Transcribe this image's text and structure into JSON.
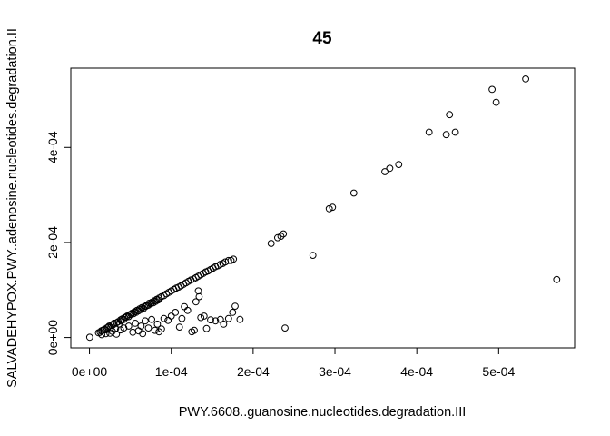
{
  "chart_data": {
    "type": "scatter",
    "title": "45",
    "xlabel": "PWY.6608..guanosine.nucleotides.degradation.III",
    "ylabel": "SALVADEHYPOX.PWY..adenosine.nucleotides.degradation.II",
    "xlim": [
      -2.28e-05,
      0.0005928
    ],
    "ylim": [
      -2.18e-05,
      0.0005668
    ],
    "x_ticks": [
      {
        "value": 0,
        "label": "0e+00"
      },
      {
        "value": 0.0001,
        "label": "1e-04"
      },
      {
        "value": 0.0002,
        "label": "2e-04"
      },
      {
        "value": 0.0003,
        "label": "3e-04"
      },
      {
        "value": 0.0004,
        "label": "4e-04"
      },
      {
        "value": 0.0005,
        "label": "5e-04"
      }
    ],
    "y_ticks": [
      {
        "value": 0,
        "label": "0e+00"
      },
      {
        "value": 0.0002,
        "label": "2e-04"
      },
      {
        "value": 0.0004,
        "label": "4e-04"
      }
    ],
    "grid": false,
    "legend": "none",
    "points": [
      [
        3e-07,
        6e-07
      ],
      [
        1.1e-05,
        1e-05
      ],
      [
        1.45e-05,
        1.4e-05
      ],
      [
        1.8e-05,
        1.7e-05
      ],
      [
        2.1e-05,
        2e-05
      ],
      [
        2.4e-05,
        2.4e-05
      ],
      [
        2.7e-05,
        2.6e-05
      ],
      [
        3e-05,
        3e-05
      ],
      [
        3.2e-05,
        1.9e-05
      ],
      [
        3.5e-05,
        3.3e-05
      ],
      [
        3.8e-05,
        3.7e-05
      ],
      [
        4e-05,
        3.9e-05
      ],
      [
        4.3e-05,
        4.2e-05
      ],
      [
        4.6e-05,
        4.5e-05
      ],
      [
        4.9e-05,
        4.8e-05
      ],
      [
        5.2e-05,
        5.1e-05
      ],
      [
        5.5e-05,
        5.4e-05
      ],
      [
        5.8e-05,
        5.7e-05
      ],
      [
        6.1e-05,
        6e-05
      ],
      [
        6.4e-05,
        6.3e-05
      ],
      [
        6.7e-05,
        6.5e-05
      ],
      [
        7e-05,
        6.8e-05
      ],
      [
        7.3e-05,
        7.2e-05
      ],
      [
        7.6e-05,
        7.4e-05
      ],
      [
        7.9e-05,
        7.7e-05
      ],
      [
        8.2e-05,
        8e-05
      ],
      [
        8.5e-05,
        8.3e-05
      ],
      [
        8.8e-05,
        8.6e-05
      ],
      [
        9.1e-05,
        8.8e-05
      ],
      [
        9.4e-05,
        9.2e-05
      ],
      [
        9.7e-05,
        9.5e-05
      ],
      [
        0.0001,
        9.8e-05
      ],
      [
        0.000103,
        0.000101
      ],
      [
        0.000106,
        0.000104
      ],
      [
        0.000109,
        0.000106
      ],
      [
        0.000112,
        0.000109
      ],
      [
        0.000115,
        0.000112
      ],
      [
        0.000118,
        0.000115
      ],
      [
        0.000121,
        0.000118
      ],
      [
        0.000124,
        0.000121
      ],
      [
        0.000127,
        0.000123
      ],
      [
        0.00013,
        0.000126
      ],
      [
        0.000133,
        0.000129
      ],
      [
        0.000136,
        0.000132
      ],
      [
        0.000139,
        0.000135
      ],
      [
        0.000142,
        0.000138
      ],
      [
        0.000145,
        0.00014
      ],
      [
        0.000148,
        0.000143
      ],
      [
        0.000151,
        0.000146
      ],
      [
        0.000154,
        0.000149
      ],
      [
        0.000157,
        0.000151
      ],
      [
        0.00016,
        0.000154
      ],
      [
        0.000163,
        0.000156
      ],
      [
        0.000166,
        0.000159
      ],
      [
        0.00017,
        0.000162
      ],
      [
        0.000173,
        0.000162
      ],
      [
        0.000176,
        0.000165
      ],
      [
        1.3e-05,
        1.1e-05
      ],
      [
        1.6e-05,
        1.5e-05
      ],
      [
        2e-05,
        1.6e-05
      ],
      [
        2.3e-05,
        2.2e-05
      ],
      [
        2.6e-05,
        2.1e-05
      ],
      [
        2.9e-05,
        2.7e-05
      ],
      [
        3.3e-05,
        3.1e-05
      ],
      [
        3.6e-05,
        2.8e-05
      ],
      [
        3.9e-05,
        3.5e-05
      ],
      [
        4.2e-05,
        3.8e-05
      ],
      [
        4.5e-05,
        4.3e-05
      ],
      [
        4.8e-05,
        4.4e-05
      ],
      [
        5.1e-05,
        4.9e-05
      ],
      [
        5.4e-05,
        5e-05
      ],
      [
        5.7e-05,
        5.3e-05
      ],
      [
        6e-05,
        5.6e-05
      ],
      [
        6.3e-05,
        5.9e-05
      ],
      [
        6.6e-05,
        6.1e-05
      ],
      [
        6.9e-05,
        6.6e-05
      ],
      [
        7.2e-05,
        6.8e-05
      ],
      [
        7.5e-05,
        7.1e-05
      ],
      [
        7.8e-05,
        7.3e-05
      ],
      [
        8.1e-05,
        7.6e-05
      ],
      [
        8.4e-05,
        7.9e-05
      ],
      [
        1.5e-05,
        6e-06
      ],
      [
        2e-05,
        8e-06
      ],
      [
        2.5e-05,
        9e-06
      ],
      [
        2.8e-05,
        1.3e-05
      ],
      [
        3.3e-05,
        7e-06
      ],
      [
        3.8e-05,
        1.6e-05
      ],
      [
        4.2e-05,
        2e-05
      ],
      [
        4.8e-05,
        2.4e-05
      ],
      [
        5.3e-05,
        1.1e-05
      ],
      [
        5.6e-05,
        3e-05
      ],
      [
        6e-05,
        1.4e-05
      ],
      [
        6.3e-05,
        2.4e-05
      ],
      [
        6.5e-05,
        8e-06
      ],
      [
        6.8e-05,
        3.5e-05
      ],
      [
        7.2e-05,
        2e-05
      ],
      [
        7.6e-05,
        3.8e-05
      ],
      [
        8e-05,
        1.5e-05
      ],
      [
        8.3e-05,
        2.8e-05
      ],
      [
        8.5e-05,
        1.2e-05
      ],
      [
        8.8e-05,
        1.8e-05
      ],
      [
        9.1e-05,
        4e-05
      ],
      [
        9.6e-05,
        3.6e-05
      ],
      [
        0.0001,
        4.5e-05
      ],
      [
        0.000105,
        5.3e-05
      ],
      [
        0.00011,
        2.2e-05
      ],
      [
        0.000113,
        4e-05
      ],
      [
        0.000116,
        6.5e-05
      ],
      [
        0.00012,
        5.7e-05
      ],
      [
        0.000125,
        1.2e-05
      ],
      [
        0.000128,
        1.5e-05
      ],
      [
        0.00013,
        7.5e-05
      ],
      [
        0.000133,
        9.8e-05
      ],
      [
        0.000134,
        8.6e-05
      ],
      [
        0.000136,
        4.2e-05
      ],
      [
        0.00014,
        4.5e-05
      ],
      [
        0.000143,
        1.9e-05
      ],
      [
        0.000148,
        3.7e-05
      ],
      [
        0.000154,
        3.5e-05
      ],
      [
        0.00016,
        3.8e-05
      ],
      [
        0.000164,
        2.8e-05
      ],
      [
        0.00017,
        4e-05
      ],
      [
        0.000175,
        5.3e-05
      ],
      [
        0.000178,
        6.6e-05
      ],
      [
        0.000184,
        3.8e-05
      ],
      [
        0.000222,
        0.000198
      ],
      [
        0.00023,
        0.00021
      ],
      [
        0.000234,
        0.000213
      ],
      [
        0.000237,
        0.000218
      ],
      [
        0.000239,
        2e-05
      ],
      [
        0.000273,
        0.000173
      ],
      [
        0.000293,
        0.000271
      ],
      [
        0.000297,
        0.000274
      ],
      [
        0.000323,
        0.000304
      ],
      [
        0.000361,
        0.000349
      ],
      [
        0.000367,
        0.000356
      ],
      [
        0.000378,
        0.000364
      ],
      [
        0.000415,
        0.000432
      ],
      [
        0.000436,
        0.000427
      ],
      [
        0.00044,
        0.000469
      ],
      [
        0.000447,
        0.000432
      ],
      [
        0.000492,
        0.000522
      ],
      [
        0.000497,
        0.000495
      ],
      [
        0.000533,
        0.000544
      ],
      [
        0.000571,
        0.000122
      ]
    ]
  }
}
